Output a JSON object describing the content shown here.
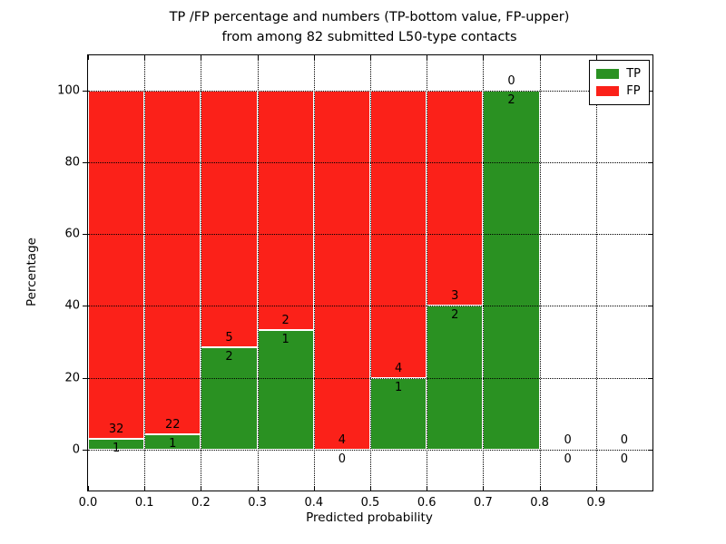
{
  "figure": {
    "title_line1": "TP /FP percentage and numbers (TP-bottom value, FP-upper)",
    "title_line2": "from among 82 submitted L50-type contacts"
  },
  "chart_data": {
    "type": "bar",
    "stacked": true,
    "title": "TP /FP percentage and numbers (TP-bottom value, FP-upper) from among 82 submitted L50-type contacts",
    "xlabel": "Predicted probability",
    "ylabel": "Percentage",
    "total_contacts": 82,
    "bin_width": 0.1,
    "bin_starts": [
      0.0,
      0.1,
      0.2,
      0.3,
      0.4,
      0.5,
      0.6,
      0.7,
      0.8,
      0.9
    ],
    "x_tick_labels": [
      "0.0",
      "0.1",
      "0.2",
      "0.3",
      "0.4",
      "0.5",
      "0.6",
      "0.7",
      "0.8",
      "0.9"
    ],
    "y_ticks": [
      0,
      20,
      40,
      60,
      80,
      100
    ],
    "y_tick_labels": [
      "0",
      "20",
      "40",
      "60",
      "80",
      "100"
    ],
    "xlim": [
      0.0,
      1.0
    ],
    "ylim": [
      -11.4,
      109.8
    ],
    "grid": true,
    "series": [
      {
        "name": "TP",
        "color": "#2a9122",
        "counts": [
          1,
          1,
          2,
          1,
          0,
          1,
          2,
          2,
          0,
          0
        ],
        "percentages": [
          3.03,
          4.35,
          28.57,
          33.33,
          0.0,
          20.0,
          40.0,
          100.0,
          0.0,
          0.0
        ]
      },
      {
        "name": "FP",
        "color": "#fb2119",
        "counts": [
          32,
          22,
          5,
          2,
          4,
          4,
          3,
          0,
          0,
          0
        ],
        "percentages": [
          96.97,
          95.65,
          71.43,
          66.67,
          100.0,
          80.0,
          60.0,
          0.0,
          0.0,
          0.0
        ]
      }
    ],
    "legend": {
      "position": "upper right",
      "entries": [
        "TP",
        "FP"
      ]
    },
    "label_convention": "TP count below stack boundary, FP count above stack boundary"
  }
}
